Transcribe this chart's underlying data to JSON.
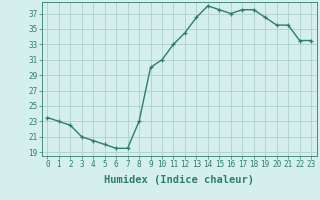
{
  "x": [
    0,
    1,
    2,
    3,
    4,
    5,
    6,
    7,
    8,
    9,
    10,
    11,
    12,
    13,
    14,
    15,
    16,
    17,
    18,
    19,
    20,
    21,
    22,
    23
  ],
  "y": [
    23.5,
    23.0,
    22.5,
    21.0,
    20.5,
    20.0,
    19.5,
    19.5,
    23.0,
    30.0,
    31.0,
    33.0,
    34.5,
    36.5,
    38.0,
    37.5,
    37.0,
    37.5,
    37.5,
    36.5,
    35.5,
    35.5,
    33.5,
    33.5
  ],
  "line_color": "#2e7d6e",
  "marker": "+",
  "bg_color": "#d5f0ec",
  "grid_color": "#aed0c8",
  "xlabel": "Humidex (Indice chaleur)",
  "xlim": [
    -0.5,
    23.5
  ],
  "ylim": [
    18.5,
    38.5
  ],
  "yticks": [
    19,
    21,
    23,
    25,
    27,
    29,
    31,
    33,
    35,
    37
  ],
  "xticks": [
    0,
    1,
    2,
    3,
    4,
    5,
    6,
    7,
    8,
    9,
    10,
    11,
    12,
    13,
    14,
    15,
    16,
    17,
    18,
    19,
    20,
    21,
    22,
    23
  ],
  "tick_color": "#2e7d6e",
  "tick_fontsize": 5.5,
  "xlabel_fontsize": 7.5,
  "linewidth": 1.0,
  "markersize": 3.5,
  "markeredgewidth": 0.9
}
